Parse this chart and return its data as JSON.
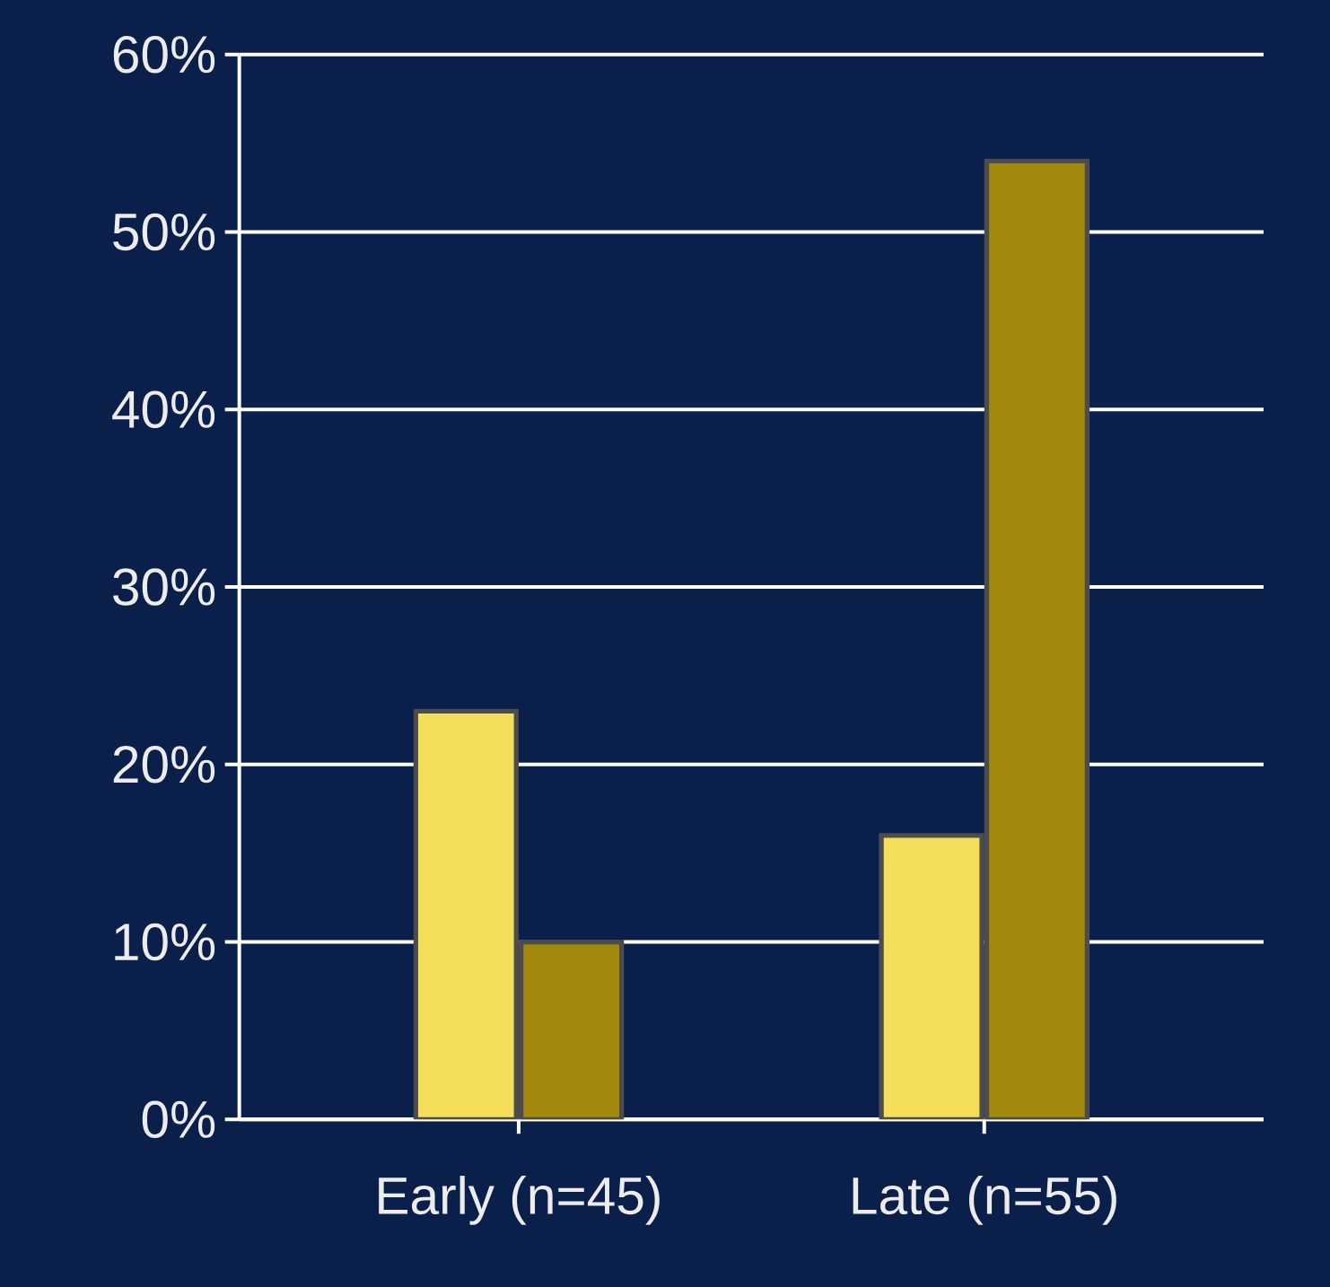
{
  "chart_data": {
    "type": "bar",
    "categories": [
      "Early (n=45)",
      "Late (n=55)"
    ],
    "series": [
      {
        "color": "#f5de5a",
        "values": [
          23,
          16
        ]
      },
      {
        "color": "#a2890e",
        "values": [
          10,
          54
        ]
      }
    ],
    "ylim": [
      0,
      60
    ],
    "yticks": [
      {
        "value": 0,
        "label": "0%"
      },
      {
        "value": 10,
        "label": "10%"
      },
      {
        "value": 20,
        "label": "20%"
      },
      {
        "value": 30,
        "label": "30%"
      },
      {
        "value": 40,
        "label": "40%"
      },
      {
        "value": 50,
        "label": "50%"
      },
      {
        "value": 60,
        "label": "60%"
      }
    ],
    "grid": "y"
  }
}
